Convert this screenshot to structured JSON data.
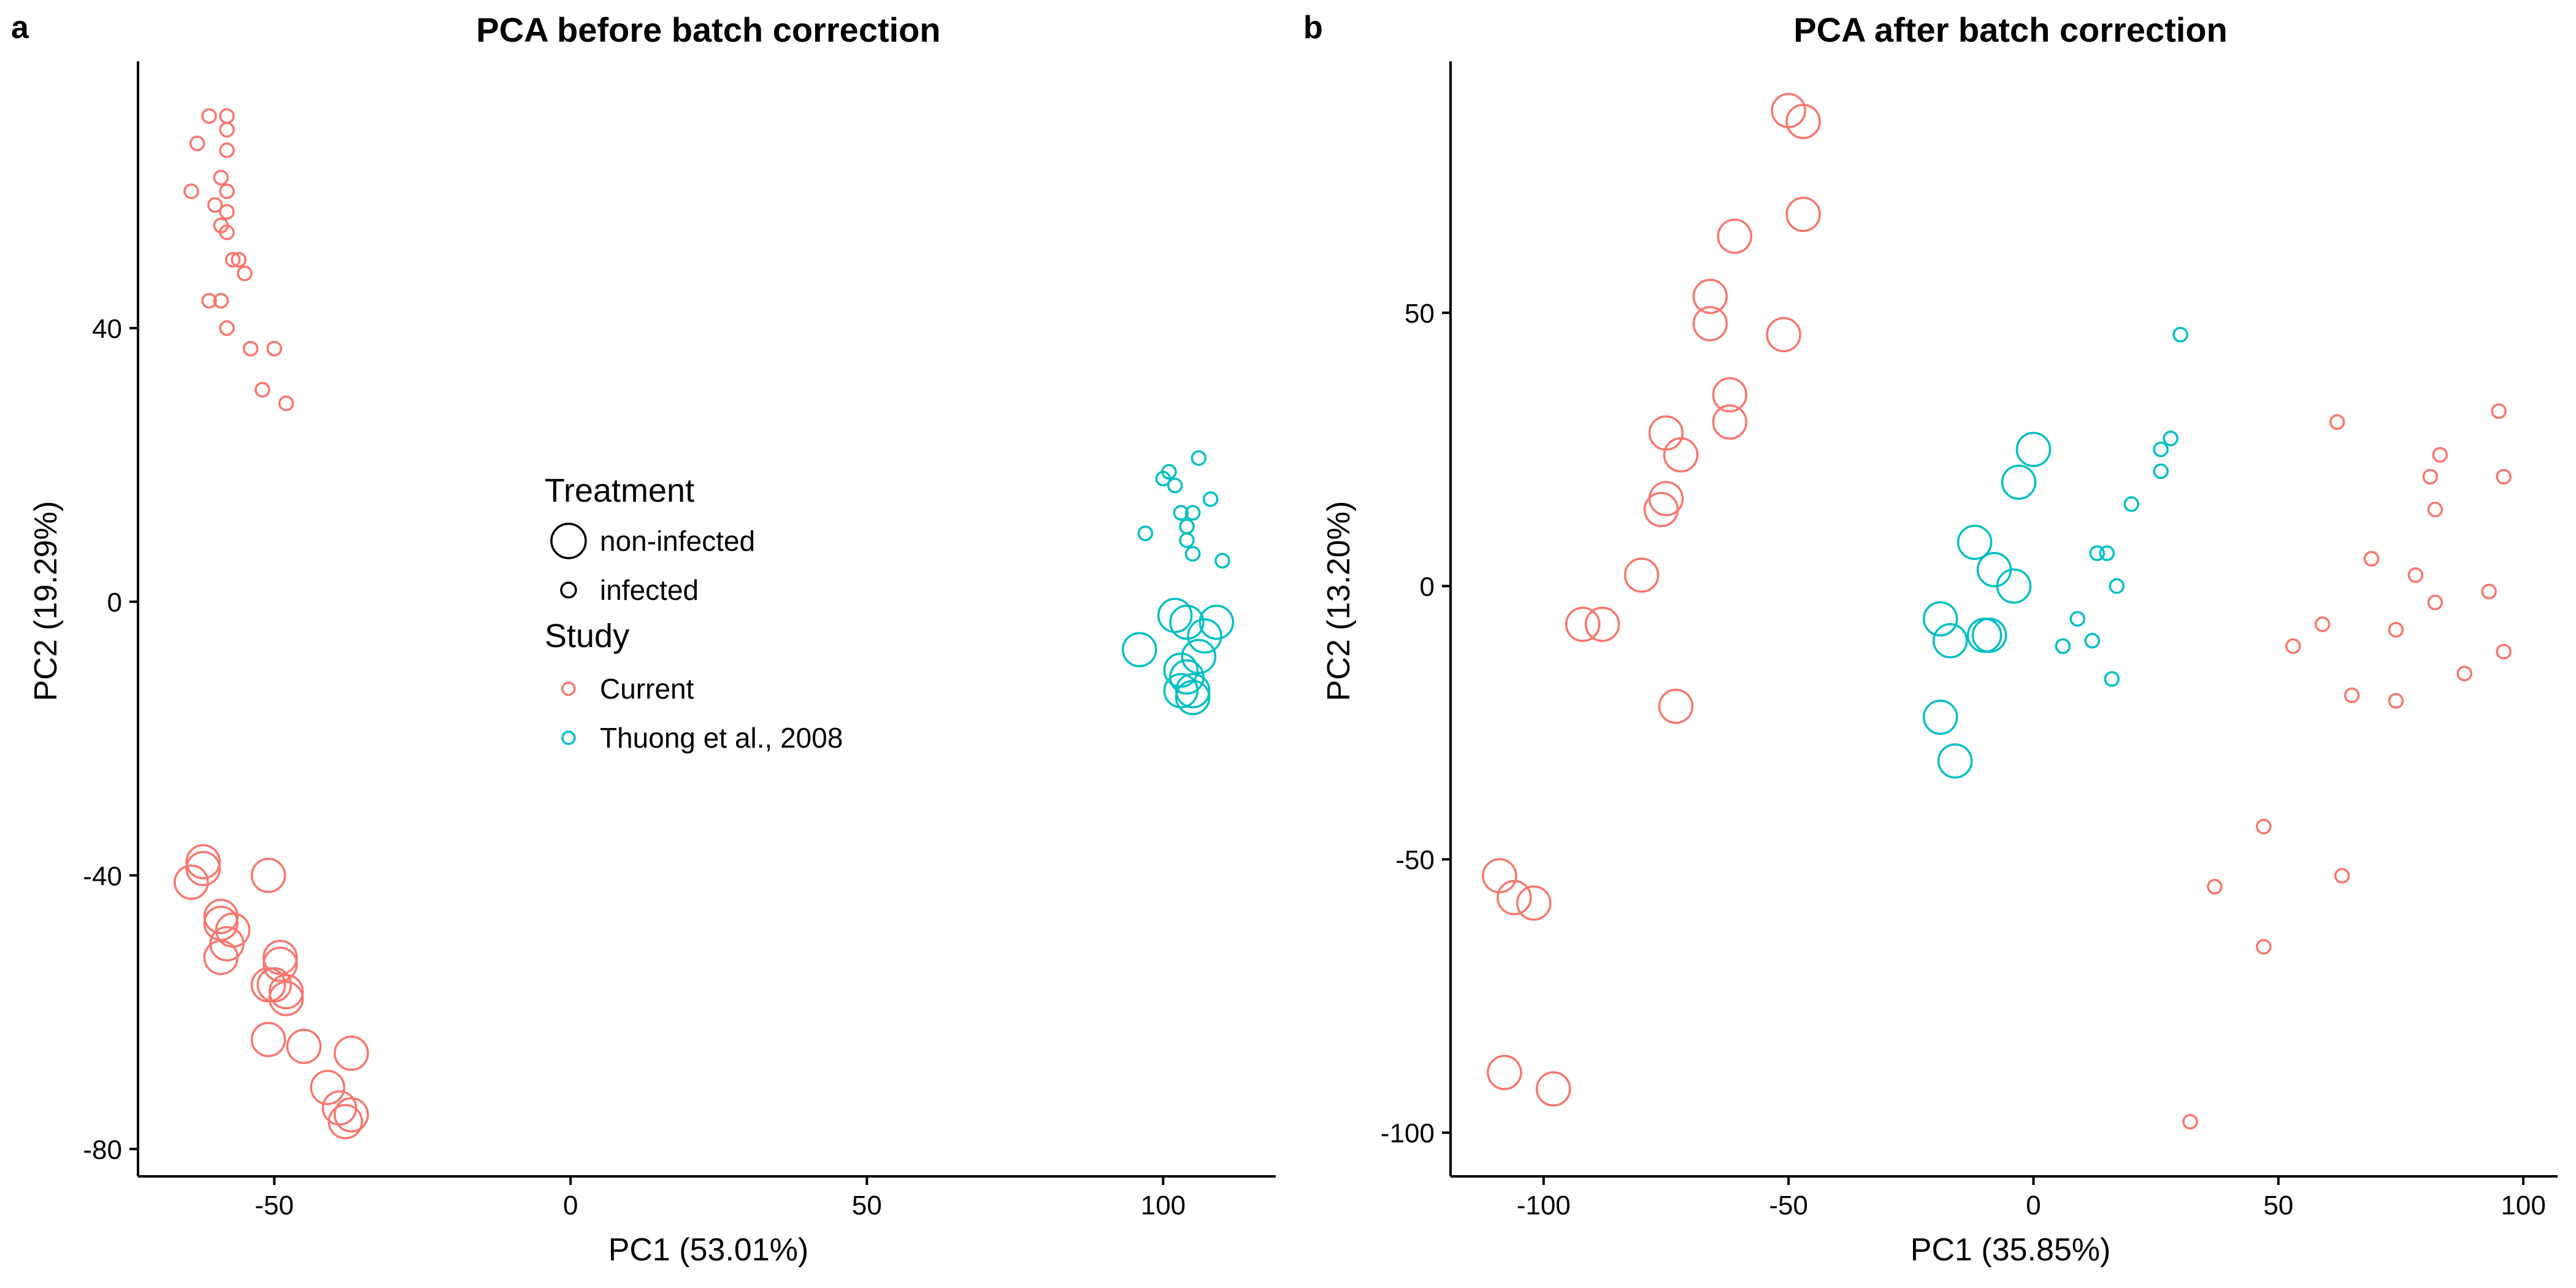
{
  "colors": {
    "current": "#F8766D",
    "thuong": "#00BFC4",
    "legend_shape": "#000000"
  },
  "legend": {
    "treatment_title": "Treatment",
    "treatment_items": [
      "non-infected",
      "infected"
    ],
    "study_title": "Study",
    "study_items": [
      "Current",
      "Thuong et al., 2008"
    ]
  },
  "chart_data": [
    {
      "type": "scatter",
      "panel": "a",
      "title": "PCA before batch correction",
      "xlabel": "PC1 (53.01%)",
      "ylabel": "PC2 (19.29%)",
      "xlim": [
        -73,
        119
      ],
      "ylim": [
        -84,
        79
      ],
      "xticks": [
        -50,
        0,
        50,
        100
      ],
      "yticks": [
        -80,
        -40,
        0,
        40
      ],
      "grid": false,
      "size_map": {
        "non-infected": "large",
        "infected": "small"
      },
      "series": [
        {
          "name": "Current / infected",
          "study": "Current",
          "treatment": "infected",
          "points": [
            [
              -61,
              71
            ],
            [
              -58,
              71
            ],
            [
              -58,
              69
            ],
            [
              -63,
              67
            ],
            [
              -58,
              66
            ],
            [
              -59,
              62
            ],
            [
              -64,
              60
            ],
            [
              -58,
              60
            ],
            [
              -60,
              58
            ],
            [
              -58,
              57
            ],
            [
              -59,
              55
            ],
            [
              -58,
              54
            ],
            [
              -57,
              50
            ],
            [
              -56,
              50
            ],
            [
              -55,
              48
            ],
            [
              -61,
              44
            ],
            [
              -59,
              44
            ],
            [
              -58,
              40
            ],
            [
              -54,
              37
            ],
            [
              -50,
              37
            ],
            [
              -52,
              31
            ],
            [
              -48,
              29
            ]
          ]
        },
        {
          "name": "Current / non-infected",
          "study": "Current",
          "treatment": "non-infected",
          "points": [
            [
              -62,
              -38
            ],
            [
              -62,
              -39
            ],
            [
              -51,
              -40
            ],
            [
              -64,
              -41
            ],
            [
              -59,
              -46
            ],
            [
              -59,
              -47
            ],
            [
              -57,
              -48
            ],
            [
              -58,
              -50
            ],
            [
              -59,
              -52
            ],
            [
              -49,
              -52
            ],
            [
              -49,
              -53
            ],
            [
              -51,
              -56
            ],
            [
              -50,
              -56
            ],
            [
              -48,
              -57
            ],
            [
              -48,
              -58
            ],
            [
              -51,
              -64
            ],
            [
              -45,
              -65
            ],
            [
              -37,
              -66
            ],
            [
              -41,
              -71
            ],
            [
              -39,
              -74
            ],
            [
              -37,
              -75
            ],
            [
              -38,
              -76
            ]
          ]
        },
        {
          "name": "Thuong et al., 2008 / infected",
          "study": "Thuong et al., 2008",
          "treatment": "infected",
          "points": [
            [
              106,
              21
            ],
            [
              101,
              19
            ],
            [
              100,
              18
            ],
            [
              102,
              17
            ],
            [
              108,
              15
            ],
            [
              97,
              10
            ],
            [
              103,
              13
            ],
            [
              105,
              13
            ],
            [
              104,
              11
            ],
            [
              104,
              9
            ],
            [
              105,
              7
            ],
            [
              110,
              6
            ]
          ]
        },
        {
          "name": "Thuong et al., 2008 / non-infected",
          "study": "Thuong et al., 2008",
          "treatment": "non-infected",
          "points": [
            [
              102,
              -2
            ],
            [
              109,
              -3
            ],
            [
              104,
              -3
            ],
            [
              107,
              -5
            ],
            [
              96,
              -7
            ],
            [
              106,
              -8
            ],
            [
              103,
              -10
            ],
            [
              104,
              -11
            ],
            [
              103,
              -13
            ],
            [
              105,
              -13
            ],
            [
              105,
              -14
            ]
          ]
        }
      ]
    },
    {
      "type": "scatter",
      "panel": "b",
      "title": "PCA after batch correction",
      "xlabel": "PC1 (35.85%)",
      "ylabel": "PC2 (13.20%)",
      "xlim": [
        -119,
        107
      ],
      "ylim": [
        -108,
        96
      ],
      "xticks": [
        -100,
        -50,
        0,
        50,
        100
      ],
      "yticks": [
        -100,
        -50,
        0,
        50
      ],
      "grid": false,
      "size_map": {
        "non-infected": "large",
        "infected": "small"
      },
      "series": [
        {
          "name": "Current / non-infected",
          "study": "Current",
          "treatment": "non-infected",
          "points": [
            [
              -50,
              87
            ],
            [
              -47,
              85
            ],
            [
              -47,
              68
            ],
            [
              -61,
              64
            ],
            [
              -66,
              53
            ],
            [
              -66,
              48
            ],
            [
              -51,
              46
            ],
            [
              -62,
              35
            ],
            [
              -62,
              30
            ],
            [
              -75,
              28
            ],
            [
              -72,
              24
            ],
            [
              -75,
              16
            ],
            [
              -76,
              14
            ],
            [
              -80,
              2
            ],
            [
              -92,
              -7
            ],
            [
              -88,
              -7
            ],
            [
              -73,
              -22
            ],
            [
              -109,
              -53
            ],
            [
              -106,
              -57
            ],
            [
              -102,
              -58
            ],
            [
              -108,
              -89
            ],
            [
              -98,
              -92
            ]
          ]
        },
        {
          "name": "Current / infected",
          "study": "Current",
          "treatment": "infected",
          "points": [
            [
              95,
              32
            ],
            [
              62,
              30
            ],
            [
              83,
              24
            ],
            [
              96,
              20
            ],
            [
              81,
              20
            ],
            [
              82,
              14
            ],
            [
              69,
              5
            ],
            [
              78,
              2
            ],
            [
              93,
              -1
            ],
            [
              82,
              -3
            ],
            [
              59,
              -7
            ],
            [
              74,
              -8
            ],
            [
              53,
              -11
            ],
            [
              96,
              -12
            ],
            [
              88,
              -16
            ],
            [
              65,
              -20
            ],
            [
              74,
              -21
            ],
            [
              47,
              -44
            ],
            [
              63,
              -53
            ],
            [
              37,
              -55
            ],
            [
              47,
              -66
            ],
            [
              32,
              -98
            ]
          ]
        },
        {
          "name": "Thuong et al., 2008 / infected",
          "study": "Thuong et al., 2008",
          "treatment": "infected",
          "points": [
            [
              30,
              46
            ],
            [
              28,
              27
            ],
            [
              26,
              25
            ],
            [
              26,
              21
            ],
            [
              20,
              15
            ],
            [
              15,
              6
            ],
            [
              13,
              6
            ],
            [
              17,
              0
            ],
            [
              9,
              -6
            ],
            [
              12,
              -10
            ],
            [
              6,
              -11
            ],
            [
              16,
              -17
            ]
          ]
        },
        {
          "name": "Thuong et al., 2008 / non-infected",
          "study": "Thuong et al., 2008",
          "treatment": "non-infected",
          "points": [
            [
              0,
              25
            ],
            [
              -3,
              19
            ],
            [
              -12,
              8
            ],
            [
              -8,
              3
            ],
            [
              -4,
              0
            ],
            [
              -19,
              -6
            ],
            [
              -10,
              -9
            ],
            [
              -9,
              -9
            ],
            [
              -17,
              -10
            ],
            [
              -19,
              -24
            ],
            [
              -16,
              -32
            ]
          ]
        }
      ]
    }
  ]
}
